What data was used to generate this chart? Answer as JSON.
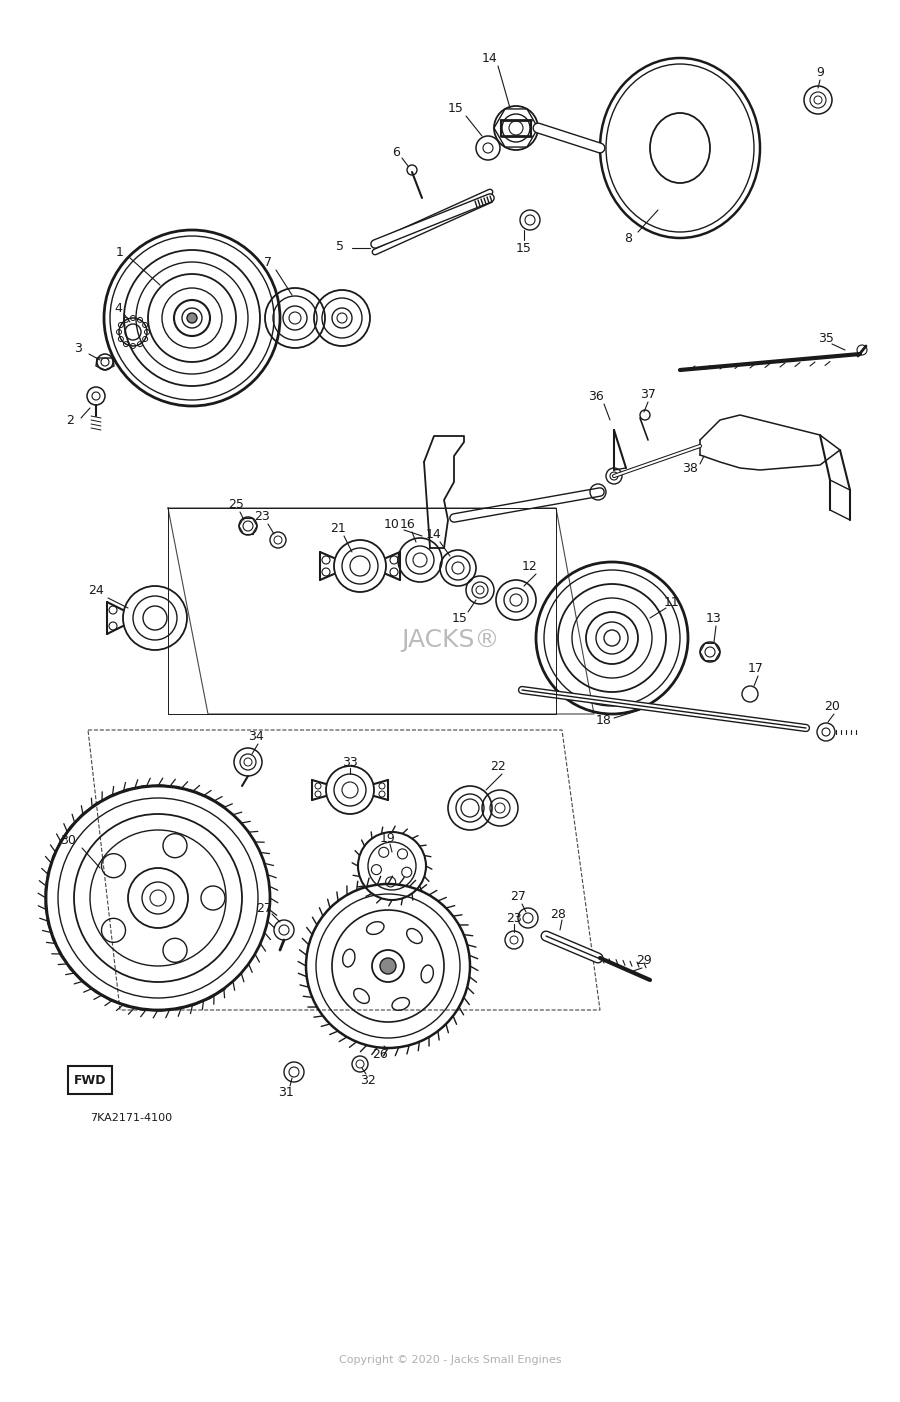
{
  "background_color": "#ffffff",
  "diagram_color": "#1a1a1a",
  "watermark_text": "Copyright © 2020 - Jacks Small Engines",
  "watermark_color": "#b0b0b0",
  "part_number_label": "7KA2171-4100",
  "fwd_label": "FWD",
  "figsize": [
    9.0,
    14.02
  ],
  "dpi": 100
}
